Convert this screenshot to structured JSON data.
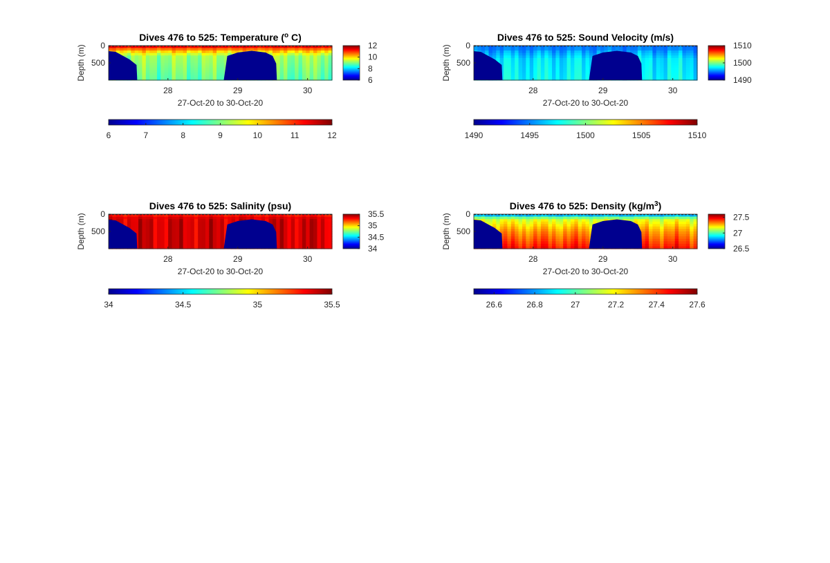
{
  "figure": {
    "title_prefix": "Dives 476 to 525: "
  },
  "colors": {
    "jet": [
      "#00008f",
      "#0000ff",
      "#0080ff",
      "#00ffff",
      "#80ff80",
      "#ffff00",
      "#ff8000",
      "#ff0000",
      "#800000"
    ],
    "bathymetry_fill": "#00008f",
    "text": "#262626"
  },
  "chart_data": [
    {
      "type": "heatmap",
      "title": "Temperature (",
      "title_sup": "o",
      "title_suffix": " C)",
      "xlabel": "27-Oct-20 to 30-Oct-20",
      "ylabel": "Depth (m)",
      "xlim": [
        27.15,
        30.35
      ],
      "ylim": [
        0,
        1000
      ],
      "y_reversed": true,
      "xticks": [
        28,
        29,
        30
      ],
      "yticks": [
        0,
        500
      ],
      "clim": [
        6,
        12
      ],
      "colorbar_ticks": [
        12,
        10,
        8,
        6
      ],
      "horizontal_colorbar_ticks": [
        6,
        7,
        8,
        9,
        10,
        11,
        12
      ],
      "surface_layer": {
        "depth": [
          0,
          60,
          150,
          300,
          1000
        ],
        "value": [
          11.6,
          11.0,
          10.2,
          9.2,
          8.8
        ]
      },
      "bathymetry": {
        "x": [
          27.15,
          27.25,
          27.45,
          27.55,
          27.56,
          28.8,
          28.85,
          29.0,
          29.2,
          29.4,
          29.5,
          29.55,
          29.56,
          30.35
        ],
        "depth": [
          160,
          180,
          400,
          560,
          1000,
          1000,
          300,
          200,
          150,
          200,
          300,
          520,
          1000,
          1000
        ]
      }
    },
    {
      "type": "heatmap",
      "title": "Sound Velocity (m/s)",
      "xlabel": "27-Oct-20 to 30-Oct-20",
      "ylabel": "Depth (m)",
      "xlim": [
        27.15,
        30.35
      ],
      "ylim": [
        0,
        1000
      ],
      "y_reversed": true,
      "xticks": [
        28,
        29,
        30
      ],
      "yticks": [
        0,
        500
      ],
      "clim": [
        1490,
        1510
      ],
      "colorbar_ticks": [
        1510,
        1500,
        1490
      ],
      "horizontal_colorbar_ticks": [
        1490,
        1495,
        1500,
        1505,
        1510
      ],
      "surface_layer": {
        "depth": [
          0,
          60,
          150,
          400,
          1000
        ],
        "value": [
          1495.5,
          1494.5,
          1495.5,
          1497,
          1497.5
        ]
      },
      "bathymetry": {
        "x": [
          27.15,
          27.25,
          27.45,
          27.55,
          27.56,
          28.8,
          28.85,
          29.0,
          29.2,
          29.4,
          29.5,
          29.55,
          29.56,
          30.35
        ],
        "depth": [
          160,
          180,
          400,
          560,
          1000,
          1000,
          300,
          200,
          150,
          200,
          300,
          520,
          1000,
          1000
        ]
      }
    },
    {
      "type": "heatmap",
      "title": "Salinity (psu)",
      "xlabel": "27-Oct-20 to 30-Oct-20",
      "ylabel": "Depth (m)",
      "xlim": [
        27.15,
        30.35
      ],
      "ylim": [
        0,
        1000
      ],
      "y_reversed": true,
      "xticks": [
        28,
        29,
        30
      ],
      "yticks": [
        0,
        500
      ],
      "clim": [
        34,
        35.5
      ],
      "colorbar_ticks": [
        35.5,
        35,
        34.5,
        34
      ],
      "horizontal_colorbar_ticks": [
        34,
        34.5,
        35,
        35.5
      ],
      "surface_layer": {
        "depth": [
          0,
          60,
          200,
          1000
        ],
        "value": [
          35.2,
          35.35,
          35.38,
          35.38
        ]
      },
      "bathymetry": {
        "x": [
          27.15,
          27.25,
          27.45,
          27.55,
          27.56,
          28.8,
          28.85,
          29.0,
          29.2,
          29.4,
          29.5,
          29.55,
          29.56,
          30.35
        ],
        "depth": [
          160,
          180,
          400,
          560,
          1000,
          1000,
          300,
          200,
          150,
          200,
          300,
          520,
          1000,
          1000
        ]
      }
    },
    {
      "type": "heatmap",
      "title": "Density (kg/m",
      "title_sup": "3",
      "title_suffix": ")",
      "xlabel": "27-Oct-20 to 30-Oct-20",
      "ylabel": "Depth (m)",
      "xlim": [
        27.15,
        30.35
      ],
      "ylim": [
        0,
        1000
      ],
      "y_reversed": true,
      "xticks": [
        28,
        29,
        30
      ],
      "yticks": [
        0,
        500
      ],
      "clim": [
        26.5,
        27.6
      ],
      "colorbar_ticks": [
        27.5,
        27,
        26.5
      ],
      "horizontal_colorbar_ticks": [
        26.6,
        26.8,
        27,
        27.2,
        27.4,
        27.6
      ],
      "surface_layer": {
        "depth": [
          0,
          60,
          160,
          500,
          1000
        ],
        "value": [
          26.7,
          26.95,
          27.15,
          27.3,
          27.45
        ]
      },
      "bathymetry": {
        "x": [
          27.15,
          27.25,
          27.45,
          27.55,
          27.56,
          28.8,
          28.85,
          29.0,
          29.2,
          29.4,
          29.5,
          29.55,
          29.56,
          30.35
        ],
        "depth": [
          160,
          180,
          400,
          560,
          1000,
          1000,
          300,
          200,
          150,
          200,
          300,
          520,
          1000,
          1000
        ]
      }
    }
  ]
}
